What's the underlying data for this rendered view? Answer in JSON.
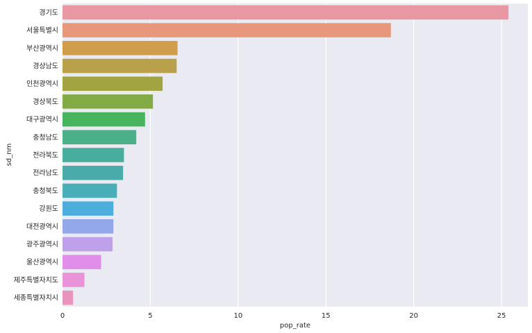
{
  "chart_data": {
    "type": "bar",
    "orientation": "horizontal",
    "categories": [
      "경기도",
      "서울특별시",
      "부산광역시",
      "경상남도",
      "인천광역시",
      "경상북도",
      "대구광역시",
      "충청남도",
      "전라북도",
      "전라남도",
      "충청북도",
      "강원도",
      "대전광역시",
      "광주광역시",
      "울산광역시",
      "제주특별자치도",
      "세종특별자치시"
    ],
    "values": [
      25.4,
      18.7,
      6.55,
      6.5,
      5.7,
      5.15,
      4.7,
      4.2,
      3.5,
      3.45,
      3.1,
      2.9,
      2.9,
      2.85,
      2.2,
      1.25,
      0.6
    ],
    "colors": [
      "#e998a3",
      "#e8987a",
      "#d09d4a",
      "#b8a14a",
      "#a2a442",
      "#82ab46",
      "#47b55e",
      "#49b089",
      "#47ad9d",
      "#49acaa",
      "#4aaeb8",
      "#4daede",
      "#93a8ea",
      "#bea1ea",
      "#e08ee8",
      "#e993d8",
      "#e994bd"
    ],
    "xlabel": "pop_rate",
    "ylabel": "sd_nm",
    "xlim": [
      0,
      26.5
    ],
    "xticks": [
      "0",
      "5",
      "10",
      "15",
      "20",
      "25"
    ],
    "xtick_values": [
      0,
      5,
      10,
      15,
      20,
      25
    ],
    "grid": true,
    "background": "#eaeaf2"
  }
}
